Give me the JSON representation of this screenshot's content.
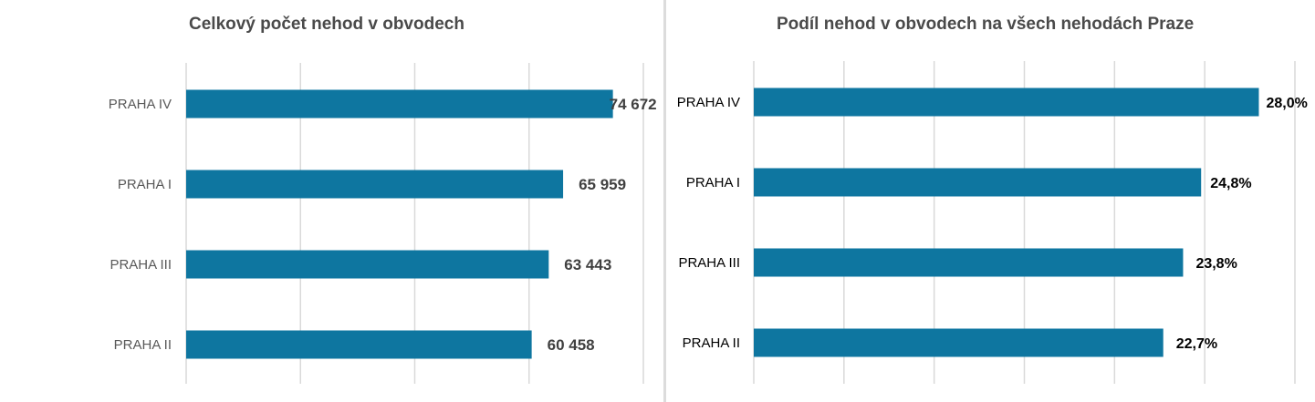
{
  "charts": [
    {
      "title": "Celkový počet nehod v obvodech"
    },
    {
      "title": "Podíl nehod v obvodech na všech nehodách Praze"
    }
  ],
  "colors": {
    "bar": "#0e76a0",
    "grid": "#d9d9d9",
    "divider": "#dcdcdc",
    "title_text": "#4a4a4a",
    "left_label_text": "#595959",
    "left_value_text": "#404040",
    "right_text": "#000000"
  },
  "chart_data": [
    {
      "type": "bar",
      "orientation": "horizontal",
      "title": "Celkový počet nehod v obvodech",
      "categories": [
        "PRAHA IV",
        "PRAHA I",
        "PRAHA III",
        "PRAHA II"
      ],
      "values": [
        74672,
        65959,
        63443,
        60458
      ],
      "data_labels": [
        "74 672",
        "65 959",
        "63 443",
        "60 458"
      ],
      "xlim": [
        0,
        80000
      ],
      "grid": true,
      "legend": "none"
    },
    {
      "type": "bar",
      "orientation": "horizontal",
      "title": "Podíl nehod v obvodech na všech nehodách Praze",
      "categories": [
        "PRAHA IV",
        "PRAHA I",
        "PRAHA III",
        "PRAHA II"
      ],
      "values": [
        28.0,
        24.8,
        23.8,
        22.7
      ],
      "data_labels": [
        "28,0%",
        "24,8%",
        "23,8%",
        "22,7%"
      ],
      "xlim": [
        0,
        30
      ],
      "grid": true,
      "legend": "none"
    }
  ]
}
